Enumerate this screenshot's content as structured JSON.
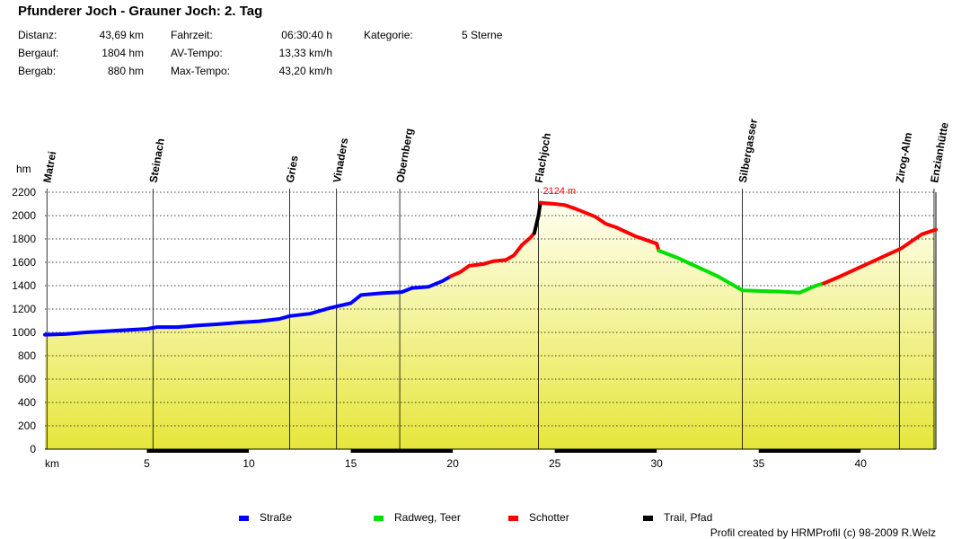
{
  "header": {
    "title": "Pfunderer Joch - Grauner Joch: 2. Tag",
    "stats": [
      {
        "label": "Distanz:",
        "value": "43,69 km"
      },
      {
        "label": "Bergauf:",
        "value": "1804 hm"
      },
      {
        "label": "Bergab:",
        "value": "880 hm"
      },
      {
        "label": "Fahrzeit:",
        "value": "06:30:40 h"
      },
      {
        "label": "AV-Tempo:",
        "value": "13,33 km/h"
      },
      {
        "label": "Max-Tempo:",
        "value": "43,20 km/h"
      },
      {
        "label": "Kategorie:",
        "value": "5 Sterne"
      }
    ]
  },
  "chart_data": {
    "type": "area",
    "xlabel": "km",
    "ylabel": "hm",
    "xlim": [
      0,
      43.69
    ],
    "ylim": [
      0,
      2200
    ],
    "x_ticks": [
      5,
      10,
      15,
      20,
      25,
      30,
      35,
      40
    ],
    "y_ticks": [
      0,
      200,
      400,
      600,
      800,
      1000,
      1200,
      1400,
      1600,
      1800,
      2000,
      2200
    ],
    "grid": true,
    "legend_position": "bottom",
    "peak_annotation": {
      "x": 24.2,
      "y": 2124,
      "text": "2124 m"
    },
    "waypoints": [
      {
        "name": "Matrei",
        "x": 0.1
      },
      {
        "name": "Steinach",
        "x": 5.3
      },
      {
        "name": "Gries",
        "x": 12.0
      },
      {
        "name": "Vinaders",
        "x": 14.3
      },
      {
        "name": "Obernberg",
        "x": 17.4
      },
      {
        "name": "Flachjoch",
        "x": 24.2
      },
      {
        "name": "Silbergasser",
        "x": 34.2
      },
      {
        "name": "Zirog-Alm",
        "x": 41.9
      },
      {
        "name": "Enzianhütte",
        "x": 43.6
      }
    ],
    "legend": [
      {
        "name": "Straße",
        "color": "#0000ff"
      },
      {
        "name": "Radweg, Teer",
        "color": "#00e000"
      },
      {
        "name": "Schotter",
        "color": "#ff0000"
      },
      {
        "name": "Trail, Pfad",
        "color": "#000000"
      }
    ],
    "series": [
      {
        "surface": "Straße",
        "points": [
          [
            0,
            980
          ],
          [
            1,
            985
          ],
          [
            2,
            1000
          ],
          [
            3,
            1010
          ],
          [
            4,
            1020
          ],
          [
            5,
            1030
          ],
          [
            5.5,
            1045
          ],
          [
            6.5,
            1045
          ],
          [
            7.5,
            1060
          ],
          [
            8.5,
            1070
          ],
          [
            9.5,
            1085
          ],
          [
            10.5,
            1095
          ],
          [
            11.5,
            1115
          ],
          [
            12,
            1140
          ],
          [
            13,
            1160
          ],
          [
            14,
            1210
          ],
          [
            15,
            1250
          ],
          [
            15.5,
            1320
          ],
          [
            16.5,
            1335
          ],
          [
            17.5,
            1345
          ],
          [
            18,
            1380
          ],
          [
            18.8,
            1390
          ],
          [
            19.5,
            1440
          ],
          [
            19.9,
            1480
          ]
        ]
      },
      {
        "surface": "Schotter",
        "points": [
          [
            19.9,
            1480
          ],
          [
            20.4,
            1520
          ],
          [
            20.8,
            1570
          ],
          [
            21.5,
            1585
          ],
          [
            22,
            1610
          ],
          [
            22.6,
            1620
          ],
          [
            23,
            1660
          ],
          [
            23.4,
            1750
          ],
          [
            23.8,
            1810
          ],
          [
            24.0,
            1850
          ]
        ]
      },
      {
        "surface": "Trail, Pfad",
        "points": [
          [
            24.0,
            1850
          ],
          [
            24.2,
            2000
          ],
          [
            24.3,
            2110
          ]
        ]
      },
      {
        "surface": "Schotter",
        "points": [
          [
            24.3,
            2110
          ],
          [
            25,
            2100
          ],
          [
            25.5,
            2090
          ],
          [
            26,
            2060
          ],
          [
            27,
            1990
          ],
          [
            27.5,
            1930
          ],
          [
            28,
            1900
          ],
          [
            29,
            1820
          ],
          [
            30,
            1760
          ],
          [
            30.1,
            1700
          ]
        ]
      },
      {
        "surface": "Radweg, Teer",
        "points": [
          [
            30.1,
            1700
          ],
          [
            31,
            1640
          ],
          [
            32,
            1560
          ],
          [
            33,
            1480
          ],
          [
            34.2,
            1360
          ],
          [
            35,
            1355
          ],
          [
            36,
            1350
          ],
          [
            37,
            1340
          ],
          [
            37.8,
            1400
          ],
          [
            38.2,
            1420
          ]
        ]
      },
      {
        "surface": "Schotter",
        "points": [
          [
            38.2,
            1420
          ],
          [
            39,
            1480
          ],
          [
            40,
            1560
          ],
          [
            41,
            1640
          ],
          [
            42,
            1720
          ],
          [
            43,
            1840
          ],
          [
            43.69,
            1880
          ]
        ]
      }
    ]
  },
  "credit": "Profil created by HRMProfil (c) 98-2009 R.Welz"
}
